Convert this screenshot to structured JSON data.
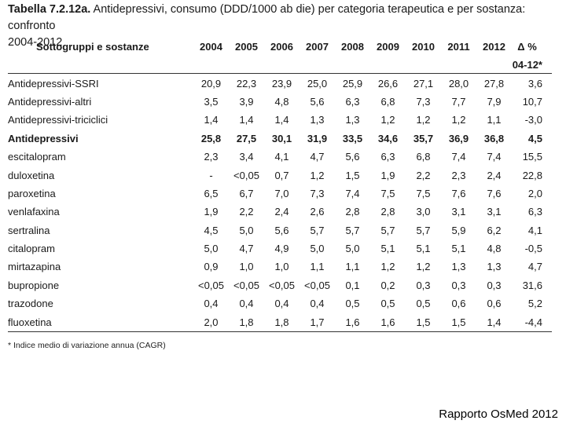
{
  "title_line1_prefix": "Tabella 7.2.12a.",
  "title_line1_rest": " Antidepressivi, consumo (DDD/1000 ab die) per categoria terapeutica e per sostanza: confronto",
  "title_line2": "2004-2012",
  "header": {
    "name": "Sottogruppi e sostanze",
    "years": [
      "2004",
      "2005",
      "2006",
      "2007",
      "2008",
      "2009",
      "2010",
      "2011",
      "2012"
    ],
    "delta": "Δ %",
    "delta_sub": "04-12*"
  },
  "rows": [
    {
      "name": "Antidepressivi-SSRI",
      "values": [
        "20,9",
        "22,3",
        "23,9",
        "25,0",
        "25,9",
        "26,6",
        "27,1",
        "28,0",
        "27,8"
      ],
      "delta": "3,6",
      "bold": false
    },
    {
      "name": "Antidepressivi-altri",
      "values": [
        "3,5",
        "3,9",
        "4,8",
        "5,6",
        "6,3",
        "6,8",
        "7,3",
        "7,7",
        "7,9"
      ],
      "delta": "10,7",
      "bold": false
    },
    {
      "name": "Antidepressivi-triciclici",
      "values": [
        "1,4",
        "1,4",
        "1,4",
        "1,3",
        "1,3",
        "1,2",
        "1,2",
        "1,2",
        "1,1"
      ],
      "delta": "-3,0",
      "bold": false
    },
    {
      "name": "Antidepressivi",
      "values": [
        "25,8",
        "27,5",
        "30,1",
        "31,9",
        "33,5",
        "34,6",
        "35,7",
        "36,9",
        "36,8"
      ],
      "delta": "4,5",
      "bold": true
    },
    {
      "name": "escitalopram",
      "values": [
        "2,3",
        "3,4",
        "4,1",
        "4,7",
        "5,6",
        "6,3",
        "6,8",
        "7,4",
        "7,4"
      ],
      "delta": "15,5",
      "bold": false
    },
    {
      "name": "duloxetina",
      "values": [
        "-",
        "<0,05",
        "0,7",
        "1,2",
        "1,5",
        "1,9",
        "2,2",
        "2,3",
        "2,4"
      ],
      "delta": "22,8",
      "bold": false
    },
    {
      "name": "paroxetina",
      "values": [
        "6,5",
        "6,7",
        "7,0",
        "7,3",
        "7,4",
        "7,5",
        "7,5",
        "7,6",
        "7,6"
      ],
      "delta": "2,0",
      "bold": false
    },
    {
      "name": "venlafaxina",
      "values": [
        "1,9",
        "2,2",
        "2,4",
        "2,6",
        "2,8",
        "2,8",
        "3,0",
        "3,1",
        "3,1"
      ],
      "delta": "6,3",
      "bold": false
    },
    {
      "name": "sertralina",
      "values": [
        "4,5",
        "5,0",
        "5,6",
        "5,7",
        "5,7",
        "5,7",
        "5,7",
        "5,9",
        "6,2"
      ],
      "delta": "4,1",
      "bold": false
    },
    {
      "name": "citalopram",
      "values": [
        "5,0",
        "4,7",
        "4,9",
        "5,0",
        "5,0",
        "5,1",
        "5,1",
        "5,1",
        "4,8"
      ],
      "delta": "-0,5",
      "bold": false
    },
    {
      "name": "mirtazapina",
      "values": [
        "0,9",
        "1,0",
        "1,0",
        "1,1",
        "1,1",
        "1,2",
        "1,2",
        "1,3",
        "1,3"
      ],
      "delta": "4,7",
      "bold": false
    },
    {
      "name": "bupropione",
      "values": [
        "<0,05",
        "<0,05",
        "<0,05",
        "<0,05",
        "0,1",
        "0,2",
        "0,3",
        "0,3",
        "0,3"
      ],
      "delta": "31,6",
      "bold": false
    },
    {
      "name": "trazodone",
      "values": [
        "0,4",
        "0,4",
        "0,4",
        "0,4",
        "0,5",
        "0,5",
        "0,5",
        "0,6",
        "0,6"
      ],
      "delta": "5,2",
      "bold": false
    },
    {
      "name": "fluoxetina",
      "values": [
        "2,0",
        "1,8",
        "1,8",
        "1,7",
        "1,6",
        "1,6",
        "1,5",
        "1,5",
        "1,4"
      ],
      "delta": "-4,4",
      "bold": false
    }
  ],
  "footnote": "* Indice medio di variazione annua (CAGR)",
  "source": "Rapporto OsMed 2012"
}
